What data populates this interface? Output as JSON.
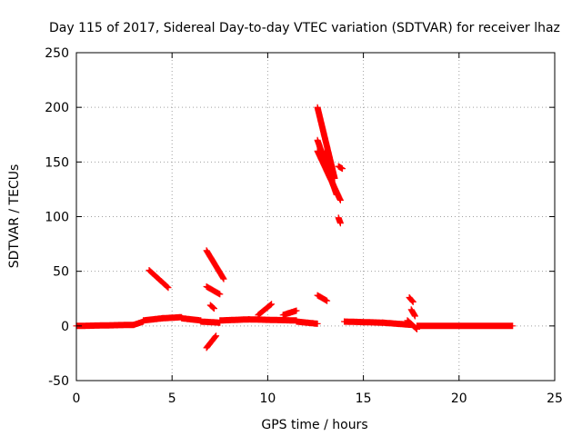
{
  "chart_data": {
    "type": "scatter",
    "title": "Day 115 of 2017, Sidereal Day-to-day VTEC variation (SDTVAR) for receiver lhaz",
    "xlabel": "GPS time / hours",
    "ylabel": "SDTVAR / TECUs",
    "xlim": [
      0,
      25
    ],
    "ylim": [
      -50,
      250
    ],
    "xticks": [
      0,
      5,
      10,
      15,
      20,
      25
    ],
    "yticks": [
      -50,
      0,
      50,
      100,
      150,
      200,
      250
    ],
    "xtick_labels": [
      "0",
      "5",
      "10",
      "15",
      "20",
      "25"
    ],
    "ytick_labels": [
      "-50",
      "0",
      "50",
      "100",
      "150",
      "200",
      "250"
    ],
    "grid": true,
    "marker": "plus",
    "color": "#ff0000",
    "series": [
      {
        "name": "SDTVAR",
        "segments": [
          [
            [
              0.0,
              0
            ],
            [
              3.0,
              1
            ]
          ],
          [
            [
              3.0,
              1
            ],
            [
              3.5,
              4
            ]
          ],
          [
            [
              3.5,
              5
            ],
            [
              4.5,
              7
            ]
          ],
          [
            [
              4.5,
              7
            ],
            [
              5.5,
              8
            ]
          ],
          [
            [
              5.5,
              7
            ],
            [
              6.5,
              5
            ]
          ],
          [
            [
              6.5,
              4
            ],
            [
              7.5,
              3
            ]
          ],
          [
            [
              7.5,
              5
            ],
            [
              9.0,
              6
            ]
          ],
          [
            [
              9.0,
              6
            ],
            [
              11.5,
              5
            ]
          ],
          [
            [
              11.5,
              4
            ],
            [
              12.6,
              2
            ]
          ],
          [
            [
              14.0,
              4
            ],
            [
              16.0,
              3
            ]
          ],
          [
            [
              16.0,
              3
            ],
            [
              17.5,
              1
            ]
          ],
          [
            [
              17.8,
              0
            ],
            [
              22.8,
              0
            ]
          ],
          [
            [
              3.8,
              51
            ],
            [
              4.8,
              35
            ]
          ],
          [
            [
              6.8,
              69
            ],
            [
              7.7,
              43
            ]
          ],
          [
            [
              6.8,
              36
            ],
            [
              7.5,
              29
            ]
          ],
          [
            [
              7.0,
              19
            ],
            [
              7.2,
              16
            ]
          ],
          [
            [
              6.8,
              -20
            ],
            [
              7.3,
              -9
            ]
          ],
          [
            [
              9.5,
              10
            ],
            [
              10.2,
              20
            ]
          ],
          [
            [
              10.8,
              10
            ],
            [
              11.5,
              14
            ]
          ],
          [
            [
              12.6,
              200
            ],
            [
              13.5,
              135
            ]
          ],
          [
            [
              12.6,
              170
            ],
            [
              13.6,
              120
            ]
          ],
          [
            [
              12.6,
              160
            ],
            [
              13.8,
              115
            ]
          ],
          [
            [
              13.0,
              160
            ],
            [
              13.3,
              145
            ]
          ],
          [
            [
              13.7,
              146
            ],
            [
              13.9,
              144
            ]
          ],
          [
            [
              13.7,
              99
            ],
            [
              13.8,
              94
            ]
          ],
          [
            [
              12.6,
              28
            ],
            [
              13.1,
              23
            ]
          ],
          [
            [
              17.4,
              26
            ],
            [
              17.6,
              22
            ]
          ],
          [
            [
              17.5,
              15
            ],
            [
              17.7,
              9
            ]
          ],
          [
            [
              17.3,
              5
            ],
            [
              17.8,
              -3
            ]
          ]
        ]
      }
    ]
  }
}
